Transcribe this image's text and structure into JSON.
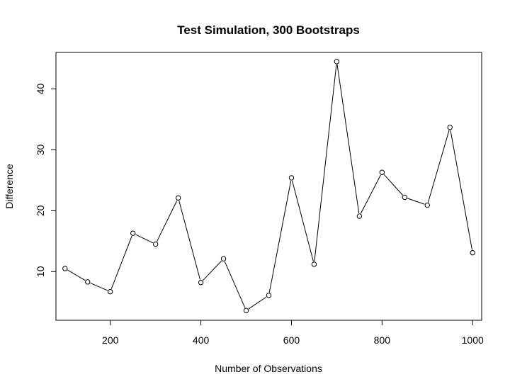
{
  "chart_data": {
    "type": "line",
    "title": "Test Simulation, 300 Bootstraps",
    "xlabel": "Number of Observations",
    "ylabel": "Difference",
    "xlim": [
      80,
      1020
    ],
    "ylim": [
      2.0,
      46.0
    ],
    "xticks": [
      200,
      400,
      600,
      800,
      1000
    ],
    "yticks": [
      10,
      20,
      30,
      40
    ],
    "grid": false,
    "legend": "none",
    "series": [
      {
        "marker": "open-circle",
        "color": "#000000",
        "x": [
          100,
          150,
          200,
          250,
          300,
          350,
          400,
          450,
          500,
          550,
          600,
          650,
          700,
          750,
          800,
          850,
          900,
          950,
          1000
        ],
        "y": [
          10.5,
          8.3,
          6.7,
          16.3,
          14.5,
          22.1,
          8.2,
          12.1,
          3.6,
          6.1,
          25.4,
          11.2,
          44.5,
          19.1,
          26.3,
          22.2,
          20.9,
          33.7,
          13.1
        ]
      }
    ]
  }
}
